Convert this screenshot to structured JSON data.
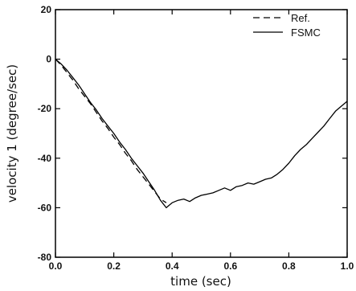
{
  "chart_data": {
    "type": "line",
    "title": "",
    "xlabel": "time  (sec)",
    "ylabel": "velocity  1  (degree/sec)",
    "xlim": [
      0.0,
      1.0
    ],
    "ylim": [
      -80,
      20
    ],
    "x_ticks": [
      0.0,
      0.2,
      0.4,
      0.6,
      0.8,
      1.0
    ],
    "x_tick_labels": [
      "0.0",
      "0.2",
      "0.4",
      "0.6",
      "0.8",
      "1.0"
    ],
    "y_ticks": [
      -80,
      -60,
      -40,
      -20,
      0,
      20
    ],
    "y_tick_labels": [
      "-80",
      "-60",
      "-40",
      "-20",
      "0",
      "20"
    ],
    "grid": false,
    "legend_position": "top-right",
    "series": [
      {
        "name": "Ref.",
        "style": "dashed",
        "color": "#000000",
        "x": [
          0.0,
          0.02,
          0.04,
          0.06,
          0.08,
          0.1,
          0.12,
          0.14,
          0.16,
          0.18,
          0.2,
          0.22,
          0.24,
          0.26,
          0.28,
          0.3,
          0.32,
          0.34,
          0.36,
          0.38
        ],
        "y": [
          0,
          -2.5,
          -5.5,
          -8.5,
          -12,
          -15,
          -18,
          -21.5,
          -25,
          -28,
          -31.5,
          -34.5,
          -38,
          -41,
          -44.5,
          -47.5,
          -50.5,
          -53.5,
          -56.5,
          -58
        ]
      },
      {
        "name": "FSMC",
        "style": "solid",
        "color": "#000000",
        "x": [
          0.0,
          0.02,
          0.04,
          0.06,
          0.08,
          0.1,
          0.12,
          0.14,
          0.16,
          0.18,
          0.2,
          0.22,
          0.24,
          0.26,
          0.28,
          0.3,
          0.32,
          0.34,
          0.36,
          0.38,
          0.4,
          0.42,
          0.44,
          0.46,
          0.48,
          0.5,
          0.52,
          0.54,
          0.56,
          0.58,
          0.6,
          0.62,
          0.64,
          0.66,
          0.68,
          0.7,
          0.72,
          0.74,
          0.76,
          0.78,
          0.8,
          0.82,
          0.84,
          0.86,
          0.88,
          0.9,
          0.92,
          0.94,
          0.96,
          0.98,
          1.0
        ],
        "y": [
          0,
          -2,
          -4.5,
          -7.5,
          -10.5,
          -14,
          -17.5,
          -20.5,
          -24,
          -27,
          -30,
          -33.5,
          -36.5,
          -40,
          -43,
          -46,
          -49.5,
          -53,
          -57,
          -60,
          -58,
          -57,
          -56.5,
          -57.5,
          -56,
          -55,
          -54.5,
          -54,
          -53,
          -52,
          -53,
          -51.5,
          -51,
          -50,
          -50.5,
          -49.5,
          -48.5,
          -48,
          -46.5,
          -44.5,
          -42,
          -39,
          -36.5,
          -34.5,
          -32,
          -29.5,
          -27,
          -24,
          -21,
          -19,
          -17
        ]
      }
    ]
  }
}
